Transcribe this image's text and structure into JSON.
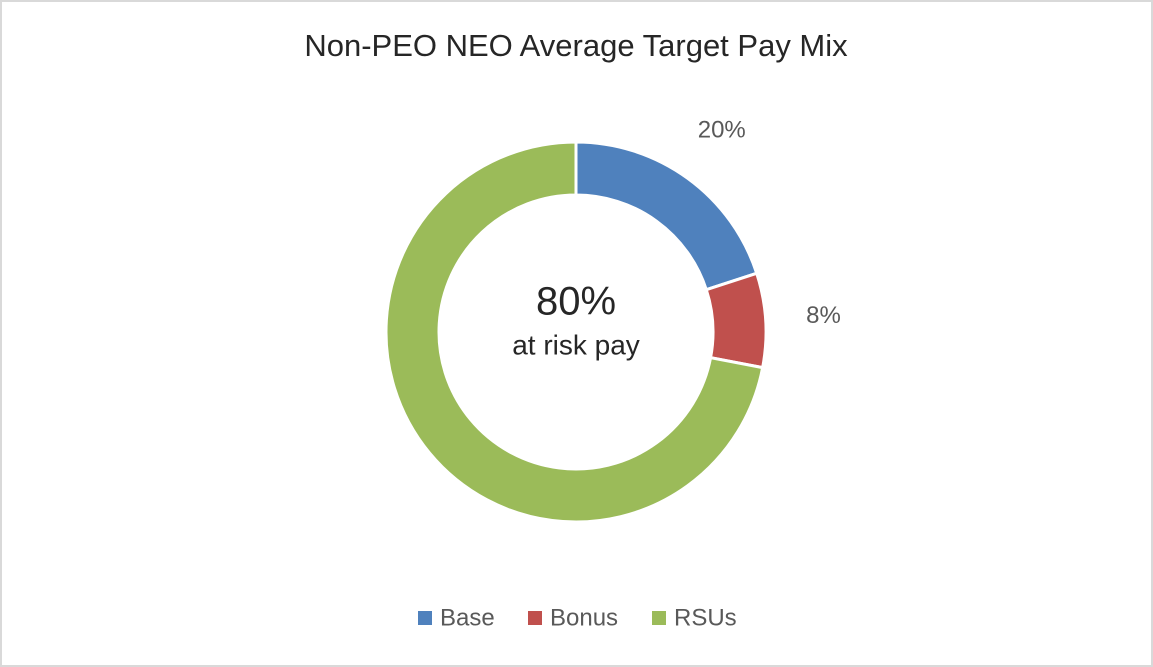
{
  "chart_data": {
    "type": "donut",
    "title": "Non-PEO NEO Average Target Pay Mix",
    "categories": [
      "Base",
      "Bonus",
      "RSUs"
    ],
    "values": [
      20,
      8,
      72
    ],
    "value_labels": [
      "20%",
      "8%",
      null
    ],
    "colors": [
      "#4f81bd",
      "#c0504d",
      "#9bbb59"
    ],
    "center_text": [
      "80%",
      "at risk pay"
    ],
    "legend": "bottom"
  }
}
